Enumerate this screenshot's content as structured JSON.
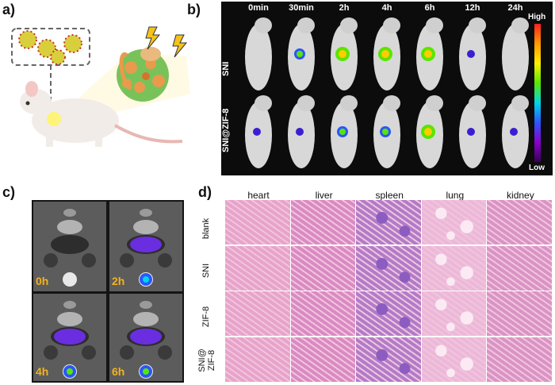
{
  "panels": {
    "a": "a)",
    "b": "b)",
    "c": "c)",
    "d": "d)"
  },
  "panel_b": {
    "times": [
      "0min",
      "30min",
      "2h",
      "4h",
      "6h",
      "12h",
      "24h"
    ],
    "rows": [
      "SNI",
      "SNI@ZIF-8"
    ],
    "colorbar": {
      "high": "High",
      "low": "Low"
    }
  },
  "panel_c": {
    "times": [
      "0h",
      "2h",
      "4h",
      "6h"
    ]
  },
  "panel_d": {
    "organs": [
      "heart",
      "liver",
      "spleen",
      "lung",
      "kidney"
    ],
    "groups": [
      "blank",
      "SNI",
      "ZIF-8",
      "SNI@\nZIF-8"
    ]
  },
  "colors": {
    "tissue_pink": "#e7a3c9",
    "tissue_purple": "#b07cc8",
    "label_gold": "#f2b21e"
  }
}
